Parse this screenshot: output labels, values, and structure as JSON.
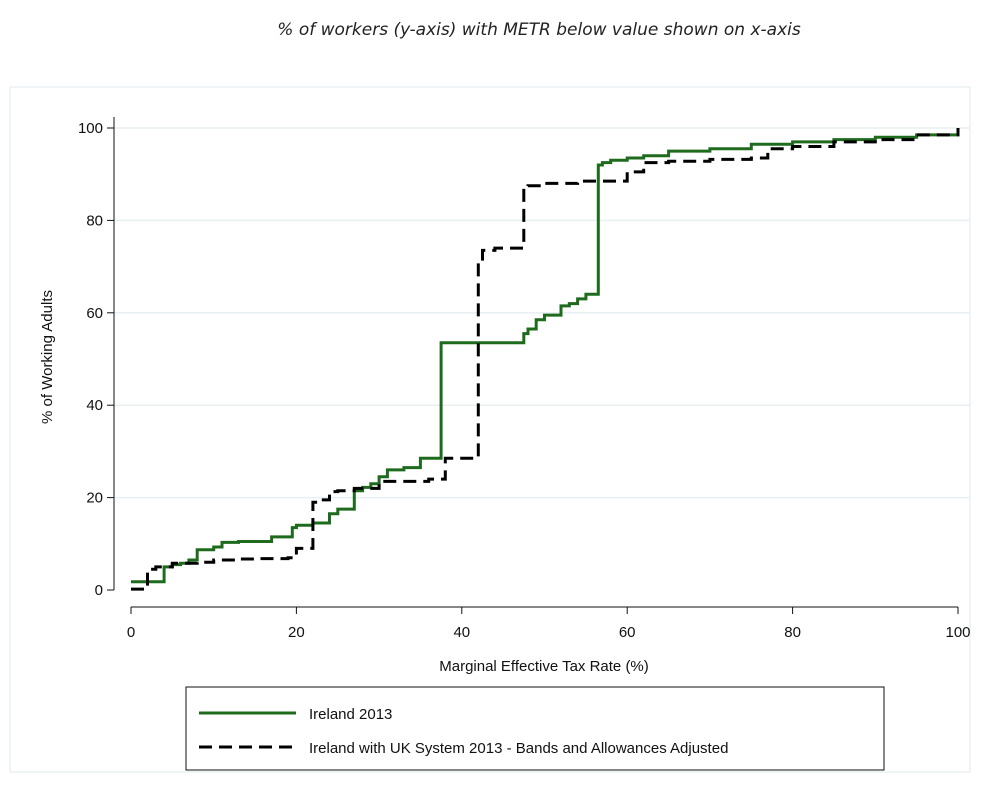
{
  "caption": "% of workers (y-axis) with METR below value shown on x-axis",
  "chart_data": {
    "type": "line",
    "step": true,
    "xlabel": "Marginal Effective Tax Rate (%)",
    "ylabel": "% of Working Adults",
    "xlim": [
      0,
      100
    ],
    "ylim": [
      0,
      100
    ],
    "xticks": [
      0,
      20,
      40,
      60,
      80,
      100
    ],
    "yticks": [
      0,
      20,
      40,
      60,
      80,
      100
    ],
    "grid": "horizontal",
    "legend": "bottom",
    "series": [
      {
        "name": "Ireland 2013",
        "color": "#1e6b1e",
        "style": "solid",
        "x": [
          0,
          4,
          5,
          6,
          7,
          8,
          10,
          11,
          13,
          17,
          19.5,
          20,
          22,
          24,
          25,
          27,
          28,
          29,
          30,
          31,
          33,
          35,
          37.5,
          43,
          47.5,
          48,
          49,
          50,
          52,
          53,
          54,
          55,
          56.5,
          57,
          58,
          60,
          62,
          65,
          70,
          75,
          80,
          85,
          90,
          95,
          100
        ],
        "y": [
          1.8,
          5,
          5.5,
          5.8,
          6.5,
          8.7,
          9.3,
          10.3,
          10.5,
          11.5,
          13.5,
          14,
          14.5,
          16.5,
          17.5,
          21.5,
          22.2,
          23,
          24.5,
          26,
          26.5,
          28.5,
          53.5,
          53.5,
          55.5,
          56.5,
          58.5,
          59.5,
          61.5,
          62,
          63,
          64,
          92,
          92.5,
          93,
          93.5,
          94,
          95,
          95.5,
          96.5,
          97,
          97.5,
          98,
          98.5,
          98.5
        ]
      },
      {
        "name": "Ireland with UK System 2013 - Bands and Allowances Adjusted",
        "color": "#000000",
        "style": "dashed",
        "x": [
          0,
          2,
          3,
          5,
          8,
          10,
          13,
          15,
          19,
          20,
          22,
          22.5,
          24,
          25,
          27,
          30,
          33,
          36,
          38,
          40,
          42,
          42.5,
          44,
          47.5,
          48,
          50,
          54,
          58,
          60,
          62,
          65,
          70,
          75,
          77,
          80,
          85,
          90,
          95,
          100
        ],
        "y": [
          0.2,
          4.5,
          5,
          5.8,
          6,
          6.5,
          6.7,
          6.8,
          7,
          9,
          19,
          19.5,
          21.3,
          21.5,
          22,
          23.5,
          23.5,
          24,
          28.5,
          28.5,
          71,
          73.5,
          74,
          87,
          87.5,
          88,
          88.5,
          88.5,
          90.5,
          92.5,
          92.8,
          93.2,
          93.5,
          95.5,
          96,
          97,
          97.5,
          98.5,
          100
        ]
      }
    ]
  }
}
